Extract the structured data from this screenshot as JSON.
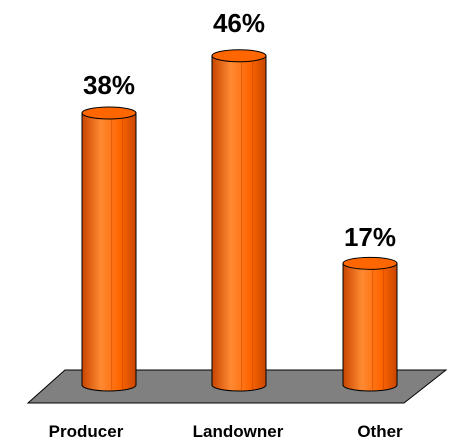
{
  "chart_data": {
    "type": "bar",
    "categories": [
      "Producer",
      "Landowner",
      "Other"
    ],
    "values": [
      38,
      46,
      17
    ],
    "value_labels": [
      "38%",
      "46%",
      "17%"
    ],
    "ylim": [
      0,
      50
    ],
    "grid": false,
    "legend": "none",
    "style": "3d-cylinder",
    "colors": {
      "bar": "#FF6600",
      "bar_light": "#FF8A33",
      "bar_dark": "#C84600",
      "floor": "#808080",
      "outline": "#000000"
    }
  }
}
